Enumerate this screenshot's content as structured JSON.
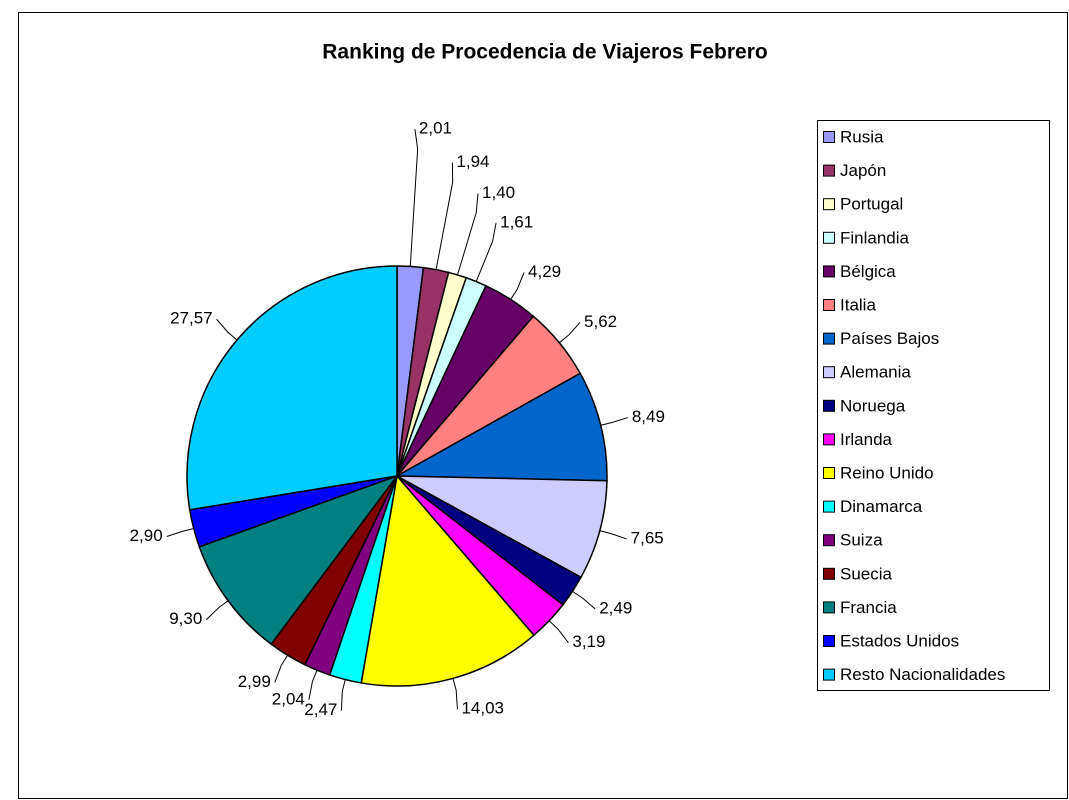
{
  "chart_data": {
    "type": "pie",
    "title": "Ranking de Procedencia de Viajeros Febrero",
    "categories": [
      "Rusia",
      "Japón",
      "Portugal",
      "Finlandia",
      "Bélgica",
      "Italia",
      "Países Bajos",
      "Alemania",
      "Noruega",
      "Irlanda",
      "Reino Unido",
      "Dinamarca",
      "Suiza",
      "Suecia",
      "Francia",
      "Estados Unidos",
      "Resto Nacionalidades"
    ],
    "values": [
      2.01,
      1.94,
      1.4,
      1.61,
      4.29,
      5.62,
      8.49,
      7.65,
      2.49,
      3.19,
      14.03,
      2.47,
      2.04,
      2.99,
      9.3,
      2.9,
      27.57
    ],
    "value_labels": [
      "2,01",
      "1,94",
      "1,40",
      "1,61",
      "4,29",
      "5,62",
      "8,49",
      "7,65",
      "2,49",
      "3,19",
      "14,03",
      "2,47",
      "2,04",
      "2,99",
      "9,30",
      "2,90",
      "27,57"
    ],
    "colors": [
      "#9999FF",
      "#993366",
      "#FFFFCC",
      "#CCFFFF",
      "#660066",
      "#FF8080",
      "#0066CC",
      "#CCCCFF",
      "#000080",
      "#FF00FF",
      "#FFFF00",
      "#00FFFF",
      "#800080",
      "#800000",
      "#008080",
      "#0000FF",
      "#00CCFF"
    ],
    "legend": "right"
  }
}
